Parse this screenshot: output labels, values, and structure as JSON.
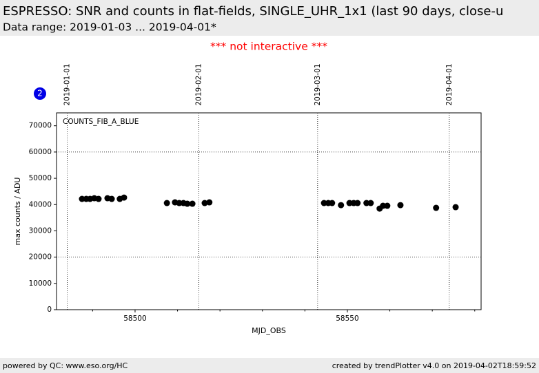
{
  "header": {
    "title": "ESPRESSO: SNR and counts in flat-fields, SINGLE_UHR_1x1 (last 90 days, close-u",
    "subtitle": "Data range: 2019-01-03 ... 2019-04-01*"
  },
  "notice": "*** not interactive ***",
  "badge": "2",
  "chart_data": {
    "type": "scatter",
    "legend_label": "COUNTS_FIB_A_BLUE",
    "x_label": "MJD_OBS",
    "y_label": "max counts / ADU",
    "color": "#000000",
    "x": [
      58487.5,
      58488.5,
      58489.4,
      58490.4,
      58491.4,
      58493.5,
      58494.5,
      58496.4,
      58497.4,
      58507.5,
      58509.4,
      58510.4,
      58511.4,
      58512.3,
      58513.5,
      58516.4,
      58517.5,
      58544.5,
      58545.5,
      58546.4,
      58548.5,
      58550.5,
      58551.5,
      58552.4,
      58554.5,
      58555.5,
      58557.6,
      58558.4,
      58559.4,
      58562.5,
      58570.9,
      58575.5
    ],
    "values": [
      42150,
      42150,
      42150,
      42410,
      42150,
      42410,
      42150,
      42150,
      42670,
      40580,
      40840,
      40580,
      40580,
      40320,
      40320,
      40580,
      40840,
      40580,
      40580,
      40580,
      39790,
      40580,
      40580,
      40580,
      40580,
      40580,
      38480,
      39530,
      39530,
      39790,
      38750,
      39010
    ],
    "xlim": [
      58481.5,
      58581.5
    ],
    "xticks": [
      58500,
      58550
    ],
    "xminor_ticks": [
      58490,
      58510,
      58520,
      58530,
      58540,
      58560,
      58570,
      58580
    ],
    "ylim": [
      0,
      74900
    ],
    "yticks": [
      0,
      10000,
      20000,
      30000,
      40000,
      50000,
      60000,
      70000
    ],
    "hlines": [
      20000,
      60000
    ],
    "date_markers": [
      {
        "value": 58484,
        "label": "2019-01-01"
      },
      {
        "value": 58515,
        "label": "2019-02-01"
      },
      {
        "value": 58543,
        "label": "2019-03-01"
      },
      {
        "value": 58574,
        "label": "2019-04-01"
      }
    ]
  },
  "footer": {
    "left": "powered by QC: www.eso.org/HC",
    "right": "created by trendPlotter v4.0 on 2019-04-02T18:59:52"
  }
}
